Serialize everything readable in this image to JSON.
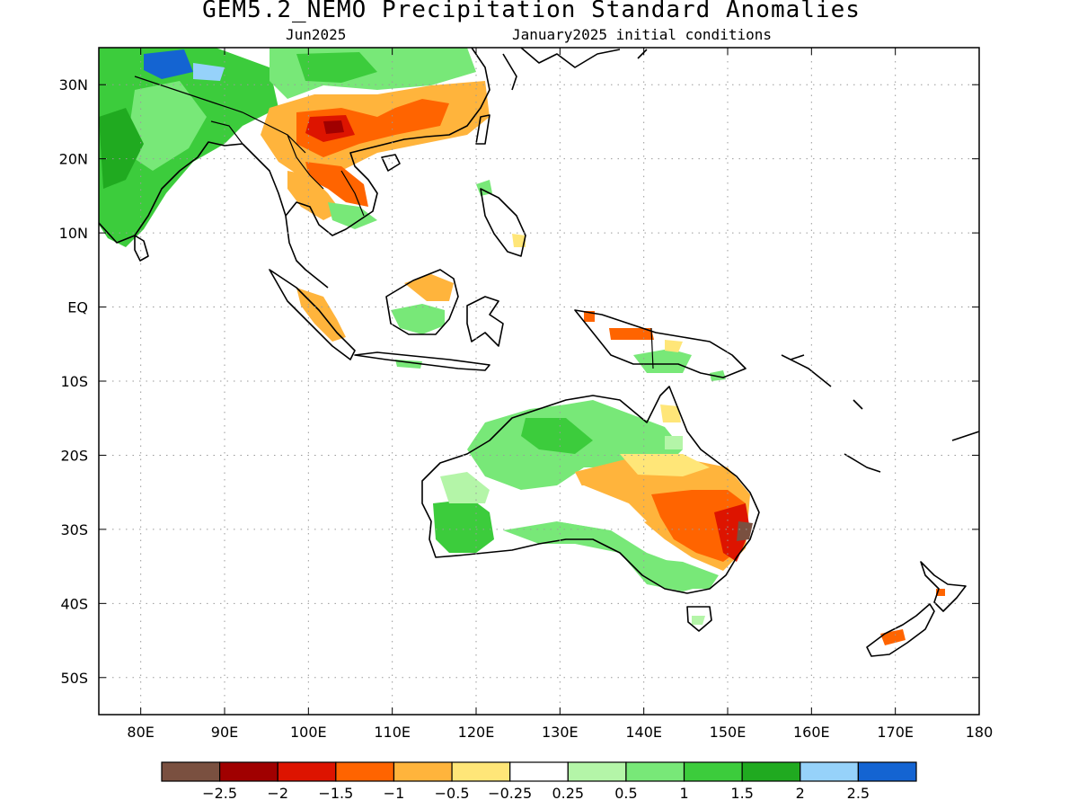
{
  "title": "GEM5.2_NEMO Precipitation Standard Anomalies",
  "subtitle_left": "Jun2025",
  "subtitle_right": "January2025 initial conditions",
  "axes": {
    "lon_range": [
      75,
      180
    ],
    "lat_range": [
      -55,
      35
    ],
    "x_ticks": [
      "80E",
      "90E",
      "100E",
      "110E",
      "120E",
      "130E",
      "140E",
      "150E",
      "160E",
      "170E",
      "180"
    ],
    "x_tick_values": [
      80,
      90,
      100,
      110,
      120,
      130,
      140,
      150,
      160,
      170,
      180
    ],
    "y_ticks": [
      "30N",
      "20N",
      "10N",
      "EQ",
      "10S",
      "20S",
      "30S",
      "40S",
      "50S"
    ],
    "y_tick_values": [
      30,
      20,
      10,
      0,
      -10,
      -20,
      -30,
      -40,
      -50
    ],
    "grid": true
  },
  "colorbar": {
    "labels": [
      "-2.5",
      "-2",
      "-1.5",
      "-1",
      "-0.5",
      "-0.25",
      "0.25",
      "0.5",
      "1",
      "1.5",
      "2",
      "2.5"
    ],
    "colors": [
      "#7a5040",
      "#a00000",
      "#dd1400",
      "#ff6400",
      "#ffb43c",
      "#ffe678",
      "#ffffff",
      "#b4f5a8",
      "#78e878",
      "#3ccc3c",
      "#20aa20",
      "#96d2fa",
      "#1464d2"
    ]
  }
}
